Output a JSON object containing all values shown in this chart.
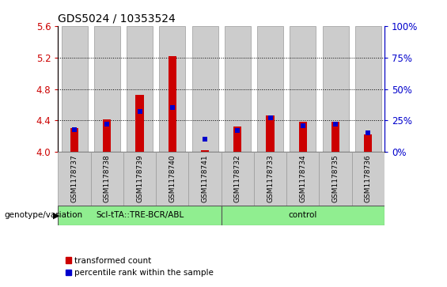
{
  "title": "GDS5024 / 10353524",
  "samples": [
    "GSM1178737",
    "GSM1178738",
    "GSM1178739",
    "GSM1178740",
    "GSM1178741",
    "GSM1178732",
    "GSM1178733",
    "GSM1178734",
    "GSM1178735",
    "GSM1178736"
  ],
  "red_values": [
    4.3,
    4.41,
    4.73,
    5.22,
    4.02,
    4.32,
    4.46,
    4.38,
    4.38,
    4.22
  ],
  "blue_values_pct": [
    18,
    22,
    32,
    35,
    10,
    17,
    27,
    21,
    22,
    15
  ],
  "ylim_left": [
    4.0,
    5.6
  ],
  "ylim_right": [
    0,
    100
  ],
  "yticks_left": [
    4.0,
    4.4,
    4.8,
    5.2,
    5.6
  ],
  "yticks_right": [
    0,
    25,
    50,
    75,
    100
  ],
  "ytick_labels_right": [
    "0%",
    "25%",
    "50%",
    "75%",
    "100%"
  ],
  "group1_label": "Scl-tTA::TRE-BCR/ABL",
  "group2_label": "control",
  "group1_indices": [
    0,
    1,
    2,
    3,
    4
  ],
  "group2_indices": [
    5,
    6,
    7,
    8,
    9
  ],
  "group_color": "#90EE90",
  "bar_bg_color": "#cccccc",
  "red_color": "#cc0000",
  "blue_color": "#0000cc",
  "genotype_label": "genotype/variation",
  "legend_red": "transformed count",
  "legend_blue": "percentile rank within the sample",
  "base_value": 4.0,
  "grid_dotted_values": [
    4.4,
    4.8,
    5.2
  ],
  "left_axis_color": "#cc0000",
  "right_axis_color": "#0000cc"
}
